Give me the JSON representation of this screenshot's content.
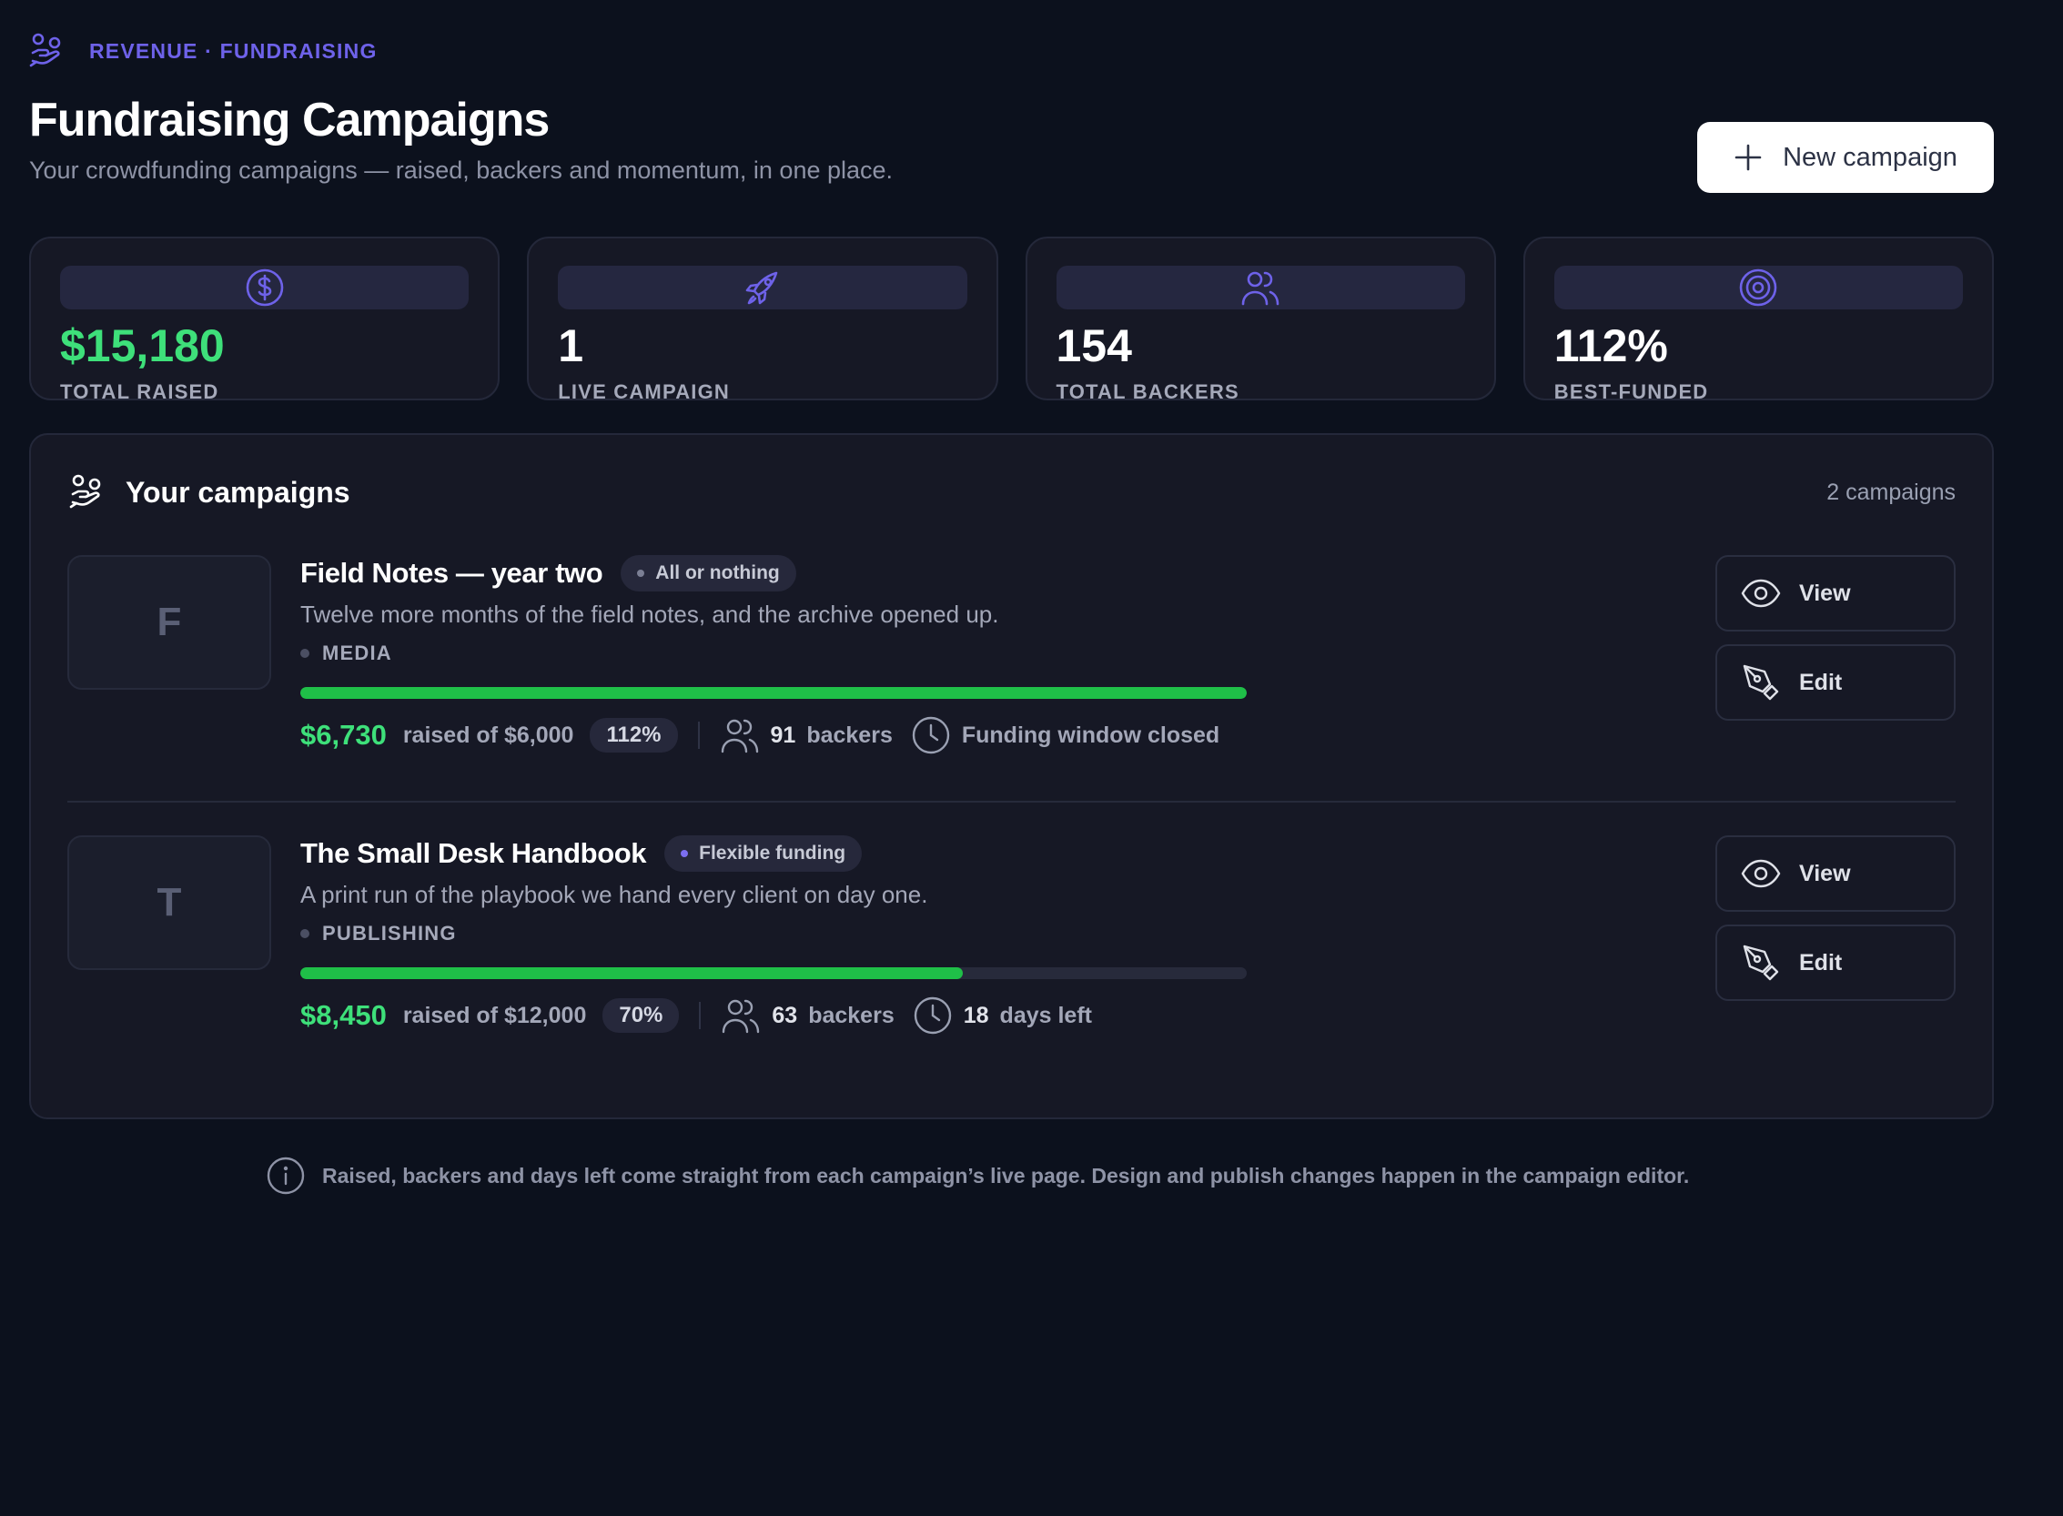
{
  "breadcrumb": "REVENUE · FUNDRAISING",
  "header": {
    "title": "Fundraising Campaigns",
    "subtitle": "Your crowdfunding campaigns — raised, backers and momentum, in one place.",
    "new_button": "New campaign"
  },
  "stats": [
    {
      "icon": "dollar-icon",
      "value": "$15,180",
      "label": "TOTAL RAISED",
      "color": "#3ee07a"
    },
    {
      "icon": "rocket-icon",
      "value": "1",
      "label": "LIVE CAMPAIGN",
      "color": "#ffffff"
    },
    {
      "icon": "users-icon",
      "value": "154",
      "label": "TOTAL BACKERS",
      "color": "#ffffff"
    },
    {
      "icon": "target-icon",
      "value": "112%",
      "label": "BEST-FUNDED",
      "color": "#ffffff"
    }
  ],
  "panel": {
    "title": "Your campaigns",
    "count": "2 campaigns"
  },
  "campaigns": [
    {
      "initial": "F",
      "title": "Field Notes — year two",
      "badge": "All or nothing",
      "badge_dot_color": "#7b7f94",
      "description": "Twelve more months of the field notes, and the archive opened up.",
      "category": "MEDIA",
      "progress": 1.0,
      "raised": "$6,730",
      "raised_of": "raised of $6,000",
      "percent": "112%",
      "backers_count": "91",
      "backers_label": "backers",
      "time_strong": "",
      "time_label": "Funding window closed",
      "view_label": "View",
      "edit_label": "Edit"
    },
    {
      "initial": "T",
      "title": "The Small Desk Handbook",
      "badge": "Flexible funding",
      "badge_dot_color": "#7c6ff0",
      "description": "A print run of the playbook we hand every client on day one.",
      "category": "PUBLISHING",
      "progress": 0.7,
      "raised": "$8,450",
      "raised_of": "raised of $12,000",
      "percent": "70%",
      "backers_count": "63",
      "backers_label": "backers",
      "time_strong": "18",
      "time_label": "days left",
      "view_label": "View",
      "edit_label": "Edit"
    }
  ],
  "footer_note": "Raised, backers and days left come straight from each campaign’s live page. Design and publish changes happen in the campaign editor.",
  "colors": {
    "accent": "#6e62e9",
    "positive": "#3ee07a",
    "progress": "#1fbf48",
    "background": "#0c111d"
  }
}
